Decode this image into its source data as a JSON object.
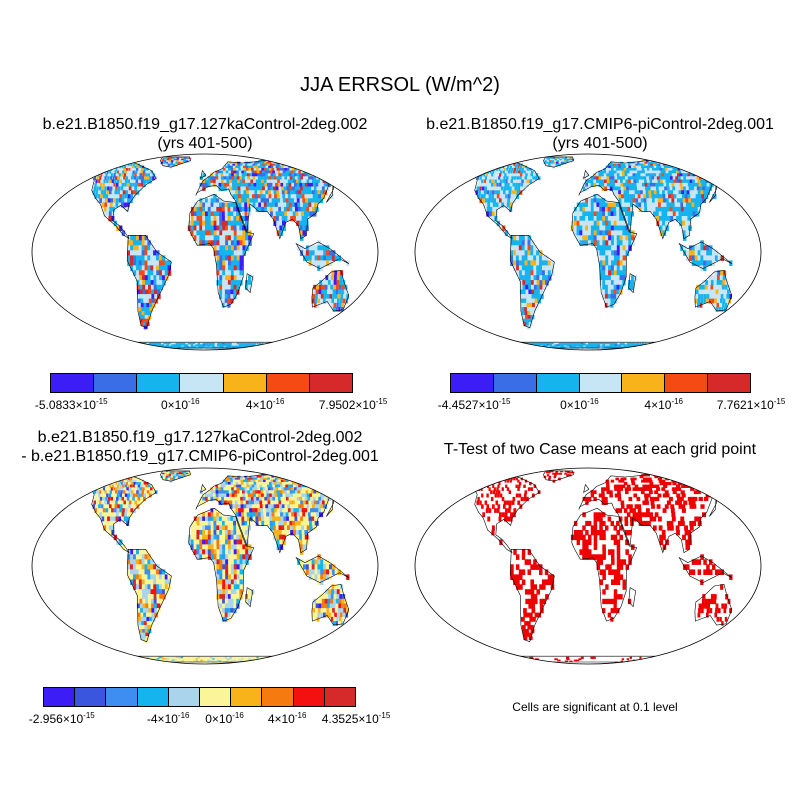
{
  "title": "JJA ERRSOL (W/m^2)",
  "panels": [
    {
      "title_line1": "b.e21.B1850.f19_g17.127kaControl-2deg.002",
      "title_line2": "(yrs 401-500)",
      "colorbar": {
        "colors": [
          "#3d1df5",
          "#3a6ee6",
          "#16b4ee",
          "#c7e6f5",
          "#f8b31b",
          "#f54a14",
          "#d62a2a"
        ],
        "labels": [
          {
            "mant": "-5.0833",
            "exp": "-15"
          },
          {
            "mant": "0",
            "exp": "-16"
          },
          {
            "mant": "4",
            "exp": "-16"
          },
          {
            "mant": "7.9502",
            "exp": "-15"
          }
        ]
      }
    },
    {
      "title_line1": "b.e21.B1850.f19_g17.CMIP6-piControl-2deg.001",
      "title_line2": "(yrs 401-500)",
      "colorbar": {
        "colors": [
          "#3d1df5",
          "#3a6ee6",
          "#16b4ee",
          "#c7e6f5",
          "#f8b31b",
          "#f54a14",
          "#d62a2a"
        ],
        "labels": [
          {
            "mant": "-4.4527",
            "exp": "-15"
          },
          {
            "mant": "0",
            "exp": "-16"
          },
          {
            "mant": "4",
            "exp": "-16"
          },
          {
            "mant": "7.7621",
            "exp": "-15"
          }
        ]
      }
    },
    {
      "title_line1": "b.e21.B1850.f19_g17.127kaControl-2deg.002",
      "title_line2": "- b.e21.B1850.f19_g17.CMIP6-piControl-2deg.001",
      "colorbar": {
        "colors": [
          "#3d1df5",
          "#3a55de",
          "#3d8ef0",
          "#16b4ee",
          "#a9d4ec",
          "#fbf599",
          "#f8b31b",
          "#f57a10",
          "#f51010",
          "#d62a2a"
        ],
        "labels": [
          {
            "mant": "-2.956",
            "exp": "-15"
          },
          {
            "mant": "-4",
            "exp": "-16"
          },
          {
            "mant": "0",
            "exp": "-16"
          },
          {
            "mant": "4",
            "exp": "-16"
          },
          {
            "mant": "4.3525",
            "exp": "-15"
          }
        ]
      }
    },
    {
      "title_line1": "T-Test of two Case means at each grid point",
      "note": "Cells are significant at 0.1 level",
      "colors": {
        "significant": "#ee0000"
      }
    }
  ]
}
